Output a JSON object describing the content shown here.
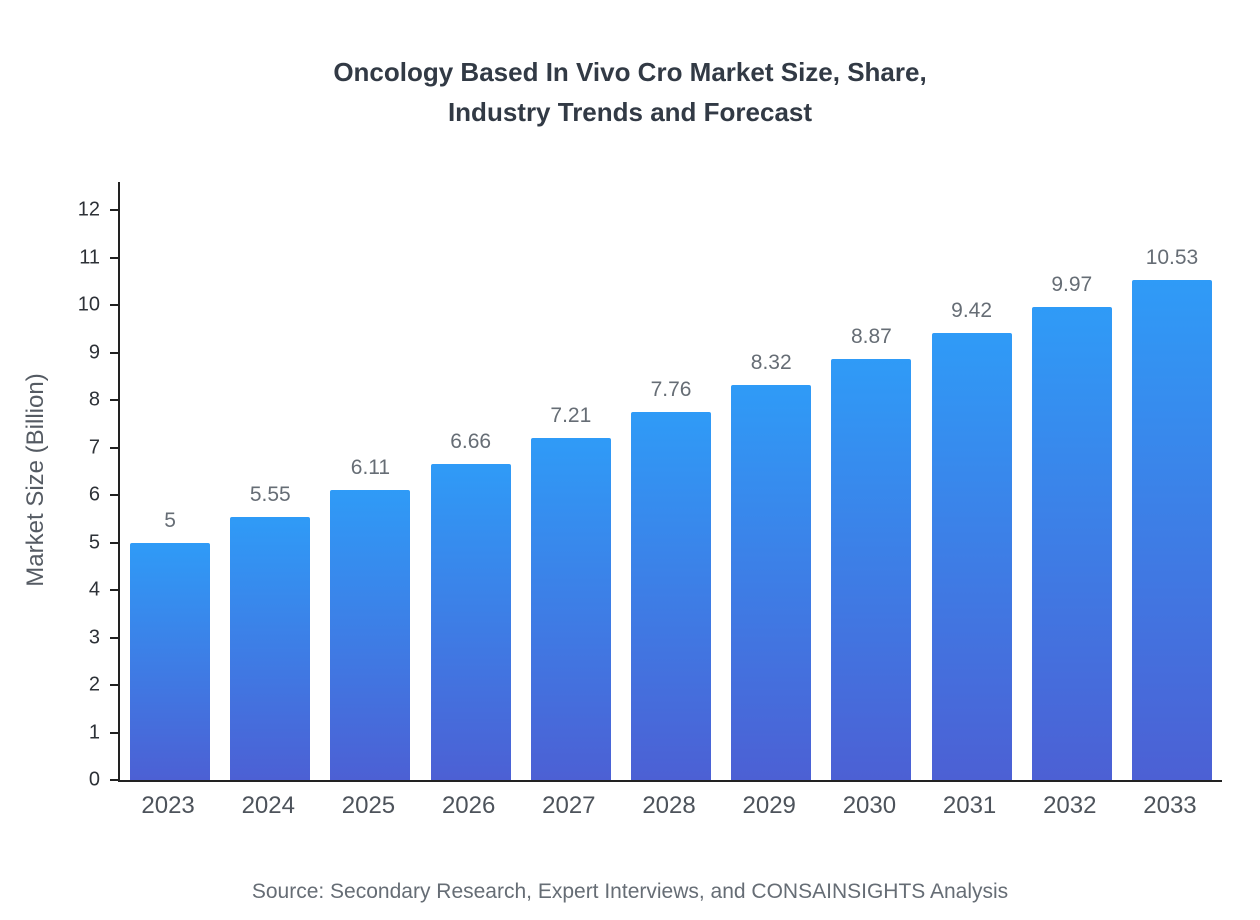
{
  "chart_data": {
    "type": "bar",
    "title_line1": "Oncology Based In Vivo Cro Market Size, Share,",
    "title_line2": "Industry Trends and Forecast",
    "categories": [
      "2023",
      "2024",
      "2025",
      "2026",
      "2027",
      "2028",
      "2029",
      "2030",
      "2031",
      "2032",
      "2033"
    ],
    "values": [
      5,
      5.55,
      6.11,
      6.66,
      7.21,
      7.76,
      8.32,
      8.87,
      9.42,
      9.97,
      10.53
    ],
    "value_labels": [
      "5",
      "5.55",
      "6.11",
      "6.66",
      "7.21",
      "7.76",
      "8.32",
      "8.87",
      "9.42",
      "9.97",
      "10.53"
    ],
    "xlabel": "",
    "ylabel": "Market Size (Billion)",
    "ylim": [
      0,
      12.6
    ],
    "yticks": [
      0,
      1,
      2,
      3,
      4,
      5,
      6,
      7,
      8,
      9,
      10,
      11,
      12
    ],
    "grid": false,
    "legend": false,
    "bar_gradient_top": "#2f9bf7",
    "bar_gradient_bottom": "#4c60d4",
    "source": "Source: Secondary Research, Expert Interviews, and CONSAINSIGHTS Analysis"
  }
}
